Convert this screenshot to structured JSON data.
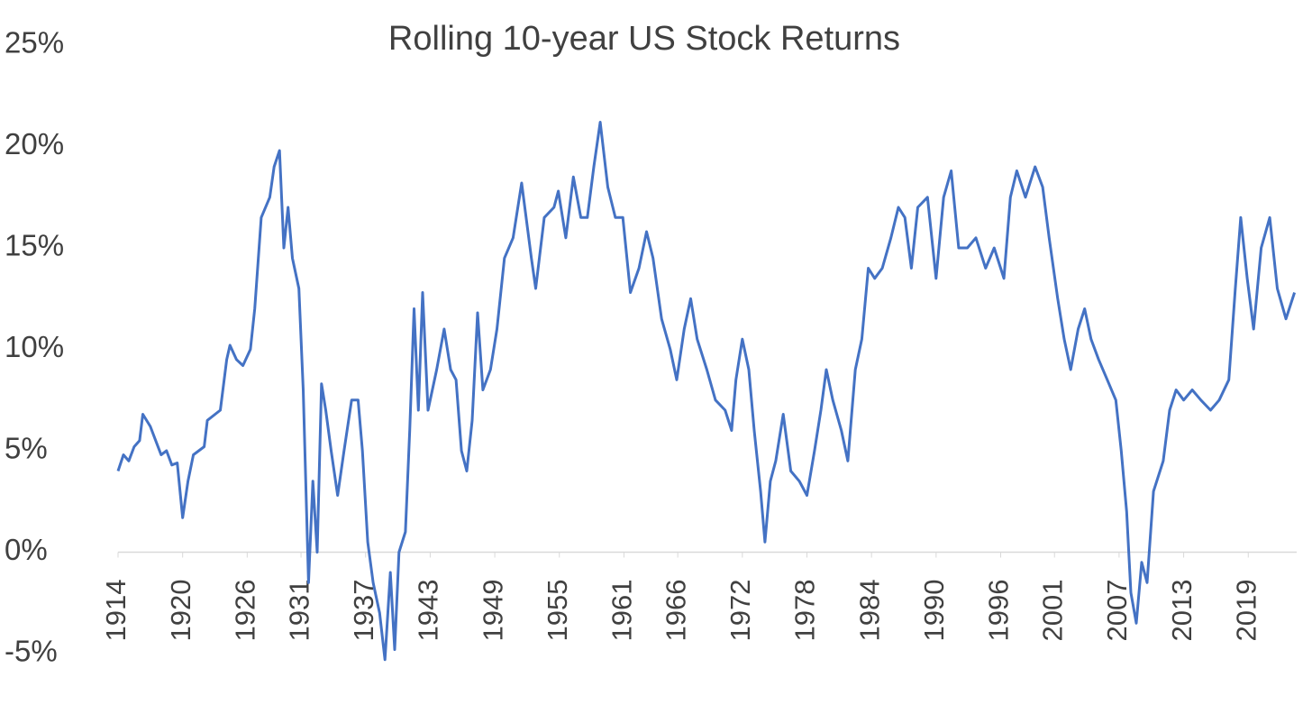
{
  "chart_data": {
    "type": "line",
    "title": "Rolling 10-year US Stock Returns",
    "x": [
      1914.0,
      1914.5,
      1915.0,
      1915.5,
      1916.0,
      1916.3,
      1917.0,
      1917.5,
      1918.0,
      1918.5,
      1919.0,
      1919.5,
      1920.0,
      1920.5,
      1921.0,
      1922.0,
      1922.3,
      1923.5,
      1924.1,
      1924.4,
      1925.0,
      1925.6,
      1926.3,
      1926.7,
      1927.3,
      1928.1,
      1928.5,
      1929.0,
      1929.4,
      1929.8,
      1930.2,
      1930.8,
      1931.2,
      1931.7,
      1932.1,
      1932.5,
      1932.9,
      1933.3,
      1933.8,
      1934.4,
      1935.0,
      1935.7,
      1936.3,
      1936.7,
      1937.2,
      1937.7,
      1938.3,
      1938.8,
      1939.3,
      1939.7,
      1940.1,
      1940.7,
      1941.1,
      1941.5,
      1941.9,
      1942.3,
      1942.8,
      1943.6,
      1944.3,
      1944.9,
      1945.4,
      1945.9,
      1946.4,
      1946.9,
      1947.4,
      1947.9,
      1948.6,
      1949.2,
      1949.9,
      1950.7,
      1951.5,
      1952.4,
      1952.8,
      1953.6,
      1954.5,
      1954.9,
      1955.6,
      1956.3,
      1957.0,
      1957.6,
      1958.2,
      1958.8,
      1959.5,
      1960.2,
      1960.9,
      1961.6,
      1962.4,
      1963.1,
      1963.7,
      1964.5,
      1965.3,
      1965.9,
      1966.6,
      1967.2,
      1967.8,
      1968.7,
      1969.5,
      1970.4,
      1971.0,
      1971.4,
      1972.0,
      1972.6,
      1973.1,
      1973.7,
      1974.1,
      1974.6,
      1975.1,
      1975.8,
      1976.5,
      1977.3,
      1978.0,
      1978.7,
      1979.3,
      1979.8,
      1980.4,
      1981.2,
      1981.8,
      1982.5,
      1983.1,
      1983.7,
      1984.3,
      1985.0,
      1985.8,
      1986.5,
      1987.1,
      1987.7,
      1988.3,
      1989.2,
      1990.0,
      1990.7,
      1991.4,
      1992.1,
      1992.9,
      1993.7,
      1994.6,
      1995.4,
      1996.3,
      1996.9,
      1997.5,
      1998.3,
      1999.2,
      1999.9,
      2000.5,
      2001.3,
      2001.9,
      2002.5,
      2003.2,
      2003.8,
      2004.4,
      2005.1,
      2005.9,
      2006.7,
      2007.2,
      2007.7,
      2008.1,
      2008.6,
      2009.1,
      2009.6,
      2010.2,
      2011.1,
      2011.7,
      2012.3,
      2013.0,
      2013.8,
      2014.6,
      2015.5,
      2016.3,
      2017.2,
      2017.8,
      2018.3,
      2018.9,
      2019.5,
      2020.2,
      2021.0,
      2021.7,
      2022.5,
      2023.3
    ],
    "series": [
      {
        "name": "Rolling 10-year US Stock Returns",
        "color": "#4472c4",
        "values": [
          4.0,
          4.8,
          4.5,
          5.2,
          5.5,
          6.8,
          6.2,
          5.5,
          4.8,
          5.0,
          4.3,
          4.4,
          1.7,
          3.5,
          4.8,
          5.2,
          6.5,
          7.0,
          9.5,
          10.2,
          9.5,
          9.2,
          10.0,
          12,
          16.5,
          17.5,
          19,
          19.8,
          15,
          17,
          14.5,
          13,
          8,
          -1.5,
          3.5,
          0,
          8.3,
          7,
          5,
          2.8,
          5,
          7.5,
          7.5,
          5,
          0.5,
          -1.5,
          -3,
          -5.3,
          -1,
          -4.8,
          0,
          1,
          6,
          12,
          7,
          12.8,
          7,
          9,
          11,
          9,
          8.5,
          5,
          4,
          6.5,
          11.8,
          8,
          9,
          11,
          14.5,
          15.5,
          18.2,
          14.5,
          13,
          16.5,
          17,
          17.8,
          15.5,
          18.5,
          16.5,
          16.5,
          19,
          21.2,
          18,
          16.5,
          16.5,
          12.8,
          14,
          15.8,
          14.5,
          11.5,
          10,
          8.5,
          11,
          12.5,
          10.5,
          9,
          7.5,
          7,
          6,
          8.5,
          10.5,
          9,
          6,
          3,
          0.5,
          3.5,
          4.5,
          6.8,
          4,
          3.5,
          2.8,
          5,
          7,
          9,
          7.5,
          6,
          4.5,
          9,
          10.5,
          14,
          13.5,
          14,
          15.5,
          17,
          16.5,
          14,
          17,
          17.5,
          13.5,
          17.5,
          18.8,
          15,
          15,
          15.5,
          14,
          15,
          13.5,
          17.5,
          18.8,
          17.5,
          19,
          18,
          15.5,
          12.5,
          10.5,
          9,
          11,
          12,
          10.5,
          9.5,
          8.5,
          7.5,
          5,
          2,
          -2,
          -3.5,
          -0.5,
          -1.5,
          3,
          4.5,
          7,
          8,
          7.5,
          8,
          7.5,
          7,
          7.5,
          8.5,
          13,
          16.5,
          13.5,
          11,
          15,
          16.5,
          13,
          11.5,
          12.8
        ]
      }
    ],
    "xlim": [
      1914,
      2023.5
    ],
    "xticks": [
      1914,
      1920,
      1926,
      1931,
      1937,
      1943,
      1949,
      1955,
      1961,
      1966,
      1972,
      1978,
      1984,
      1990,
      1996,
      2001,
      2007,
      2013,
      2019
    ],
    "ylim": [
      -5,
      25
    ],
    "yticks": [
      {
        "value": -5,
        "label": "-5%"
      },
      {
        "value": 0,
        "label": "0%"
      },
      {
        "value": 5,
        "label": "5%"
      },
      {
        "value": 10,
        "label": "10%"
      },
      {
        "value": 15,
        "label": "15%"
      },
      {
        "value": 20,
        "label": "20%"
      },
      {
        "value": 25,
        "label": "25%"
      }
    ],
    "grid": false
  }
}
